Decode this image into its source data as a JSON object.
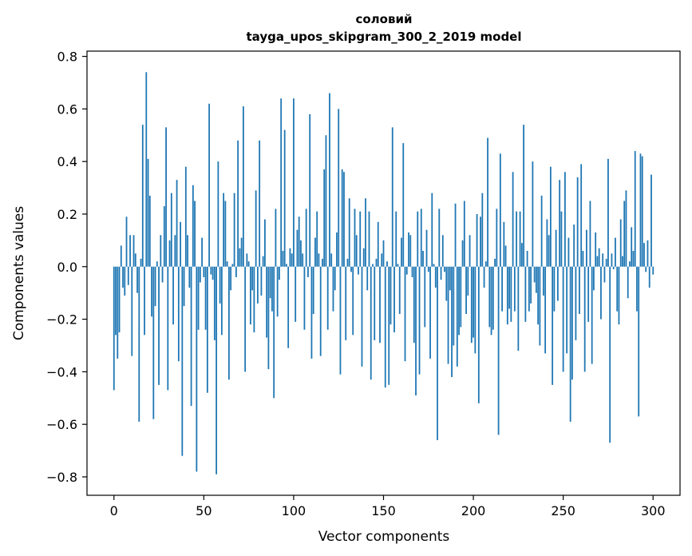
{
  "chart_data": {
    "type": "bar",
    "title": "соловий",
    "subtitle": "tayga_upos_skipgram_300_2_2019 model",
    "xlabel": "Vector components",
    "ylabel": "Components values",
    "xlim": [
      -15,
      315
    ],
    "ylim": [
      -0.87,
      0.82
    ],
    "xticks": [
      0,
      50,
      100,
      150,
      200,
      250,
      300
    ],
    "xtick_labels": [
      "0",
      "50",
      "100",
      "150",
      "200",
      "250",
      "300"
    ],
    "yticks": [
      -0.8,
      -0.6,
      -0.4,
      -0.2,
      0.0,
      0.2,
      0.4,
      0.6,
      0.8
    ],
    "ytick_labels": [
      "−0.8",
      "−0.6",
      "−0.4",
      "−0.2",
      "0.0",
      "0.2",
      "0.4",
      "0.6",
      "0.8"
    ],
    "bar_color": "#1f77b4",
    "values": [
      -0.47,
      -0.26,
      -0.35,
      -0.25,
      0.08,
      -0.08,
      -0.11,
      0.19,
      -0.07,
      0.12,
      -0.34,
      0.12,
      0.05,
      -0.1,
      -0.59,
      0.03,
      0.54,
      -0.26,
      0.74,
      0.41,
      0.27,
      -0.19,
      -0.58,
      -0.15,
      0.02,
      -0.45,
      0.12,
      -0.06,
      0.23,
      0.53,
      -0.47,
      0.1,
      0.28,
      -0.22,
      0.12,
      0.33,
      -0.36,
      0.17,
      -0.72,
      -0.15,
      0.38,
      0.12,
      -0.08,
      -0.53,
      0.31,
      0.25,
      -0.78,
      -0.24,
      -0.06,
      0.11,
      -0.04,
      -0.24,
      -0.48,
      0.62,
      -0.03,
      -0.05,
      -0.28,
      -0.79,
      0.4,
      -0.14,
      -0.26,
      0.28,
      0.25,
      0.02,
      -0.43,
      -0.09,
      0.01,
      0.28,
      -0.04,
      0.48,
      0.07,
      0.11,
      0.61,
      -0.4,
      0.05,
      0.02,
      -0.22,
      -0.09,
      -0.25,
      0.29,
      -0.14,
      0.48,
      -0.11,
      0.04,
      0.18,
      -0.27,
      -0.39,
      -0.12,
      -0.17,
      -0.5,
      0.22,
      -0.19,
      -0.05,
      0.64,
      0.06,
      0.52,
      0.01,
      -0.31,
      0.07,
      0.05,
      0.64,
      -0.21,
      0.14,
      0.19,
      0.1,
      0.05,
      -0.24,
      0.22,
      -0.04,
      0.58,
      -0.35,
      -0.18,
      0.11,
      0.21,
      0.05,
      -0.34,
      0.03,
      0.37,
      0.5,
      -0.24,
      0.66,
      0.05,
      -0.17,
      -0.09,
      0.13,
      0.6,
      -0.41,
      0.37,
      0.36,
      -0.28,
      0.03,
      0.26,
      -0.02,
      -0.26,
      0.22,
      0.12,
      -0.03,
      0.21,
      -0.38,
      0.07,
      0.26,
      -0.09,
      0.21,
      -0.43,
      0.01,
      -0.28,
      0.03,
      0.17,
      -0.29,
      0.05,
      0.1,
      -0.46,
      0.02,
      -0.45,
      -0.22,
      0.53,
      -0.25,
      0.21,
      0.01,
      -0.18,
      0.11,
      0.47,
      -0.36,
      -0.03,
      0.13,
      0.12,
      -0.04,
      -0.29,
      -0.49,
      0.21,
      -0.41,
      0.22,
      0.06,
      -0.23,
      0.14,
      -0.02,
      -0.35,
      0.28,
      0.01,
      -0.08,
      -0.66,
      0.22,
      -0.05,
      0.12,
      -0.02,
      -0.13,
      -0.37,
      -0.09,
      -0.42,
      -0.3,
      0.24,
      -0.38,
      -0.26,
      -0.23,
      0.1,
      0.25,
      -0.18,
      -0.11,
      0.12,
      -0.29,
      -0.27,
      -0.33,
      0.2,
      -0.52,
      0.19,
      0.28,
      -0.08,
      0.02,
      0.49,
      -0.23,
      -0.26,
      -0.24,
      0.03,
      0.22,
      -0.64,
      0.43,
      -0.17,
      0.17,
      0.08,
      -0.22,
      -0.16,
      -0.21,
      0.36,
      -0.17,
      0.21,
      -0.32,
      0.21,
      0.09,
      0.54,
      -0.21,
      0.06,
      -0.17,
      -0.14,
      0.4,
      -0.06,
      -0.1,
      -0.22,
      -0.3,
      0.27,
      -0.11,
      -0.33,
      0.18,
      0.12,
      0.38,
      -0.45,
      -0.17,
      0.14,
      -0.13,
      0.33,
      0.21,
      -0.4,
      0.36,
      -0.33,
      0.11,
      -0.59,
      -0.43,
      0.16,
      -0.28,
      0.34,
      -0.18,
      0.39,
      0.06,
      -0.4,
      0.14,
      -0.21,
      0.25,
      -0.37,
      -0.09,
      0.13,
      0.04,
      0.07,
      -0.2,
      0.05,
      -0.06,
      0.03,
      0.41,
      -0.67,
      0.05,
      -0.01,
      0.11,
      -0.17,
      -0.22,
      0.18,
      0.04,
      0.25,
      0.29,
      -0.12,
      0.02,
      0.15,
      0.06,
      0.44,
      -0.17,
      -0.57,
      0.43,
      0.42,
      0.09,
      -0.02,
      0.1,
      -0.08,
      0.35,
      -0.03
    ]
  }
}
